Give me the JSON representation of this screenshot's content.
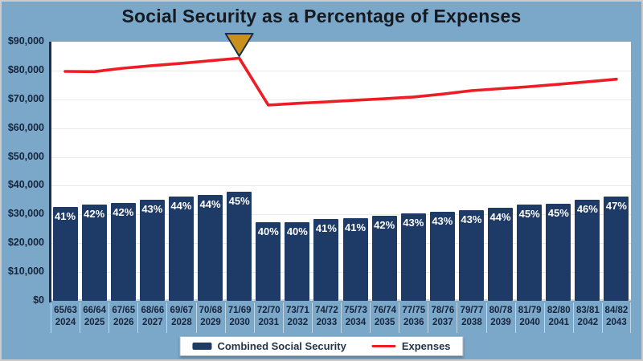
{
  "title": "Social Security as a Percentage of Expenses",
  "colors": {
    "background": "#7BA7C9",
    "plot_bg": "#FFFFFF",
    "bar": "#1E3A66",
    "line": "#EE1C25",
    "marker_fill": "#C9901E",
    "marker_border": "#1C2E4A",
    "grid": "#E9E9E9",
    "axis": "#1C2F4E",
    "label_text": "#16243C",
    "frame": "#CBCBCB"
  },
  "y_axis": {
    "ticks": [
      "$90,000",
      "$80,000",
      "$70,000",
      "$60,000",
      "$50,000",
      "$40,000",
      "$30,000",
      "$20,000",
      "$10,000",
      "$0"
    ],
    "max": 90000,
    "step": 10000
  },
  "legend": {
    "items": [
      {
        "label": "Combined Social Security",
        "swatch": "bar"
      },
      {
        "label": "Expenses",
        "swatch": "line"
      }
    ]
  },
  "annotation": {
    "shape": "down-triangle",
    "at_year": "2030"
  },
  "chart_data": {
    "type": "combo",
    "title": "Social Security as a Percentage of Expenses",
    "categories_ages": [
      "65/63",
      "66/64",
      "67/65",
      "68/66",
      "69/67",
      "70/68",
      "71/69",
      "72/70",
      "73/71",
      "74/72",
      "75/73",
      "76/74",
      "77/75",
      "78/76",
      "79/77",
      "80/78",
      "81/79",
      "82/80",
      "83/81",
      "84/82"
    ],
    "categories_years": [
      "2024",
      "2025",
      "2026",
      "2027",
      "2028",
      "2029",
      "2030",
      "2031",
      "2032",
      "2033",
      "2034",
      "2035",
      "2036",
      "2037",
      "2038",
      "2039",
      "2040",
      "2041",
      "2042",
      "2043"
    ],
    "ylim": [
      0,
      90000
    ],
    "grid": "horizontal",
    "legend_position": "bottom",
    "series": [
      {
        "name": "Combined Social Security",
        "type": "bar",
        "color": "#1E3A66",
        "labels": [
          "41%",
          "42%",
          "42%",
          "43%",
          "44%",
          "44%",
          "45%",
          "40%",
          "40%",
          "41%",
          "41%",
          "42%",
          "43%",
          "43%",
          "43%",
          "44%",
          "45%",
          "45%",
          "46%",
          "47%"
        ],
        "values": [
          32700,
          33400,
          33900,
          35100,
          36300,
          36700,
          37900,
          27200,
          27400,
          28300,
          28600,
          29500,
          30400,
          30900,
          31400,
          32400,
          33500,
          33800,
          35000,
          36200
        ]
      },
      {
        "name": "Expenses",
        "type": "line",
        "color": "#EE1C25",
        "values": [
          79700,
          79600,
          80800,
          81700,
          82500,
          83400,
          84300,
          68000,
          68600,
          69100,
          69700,
          70200,
          70800,
          71800,
          73000,
          73700,
          74400,
          75200,
          76100,
          77000
        ]
      }
    ]
  }
}
